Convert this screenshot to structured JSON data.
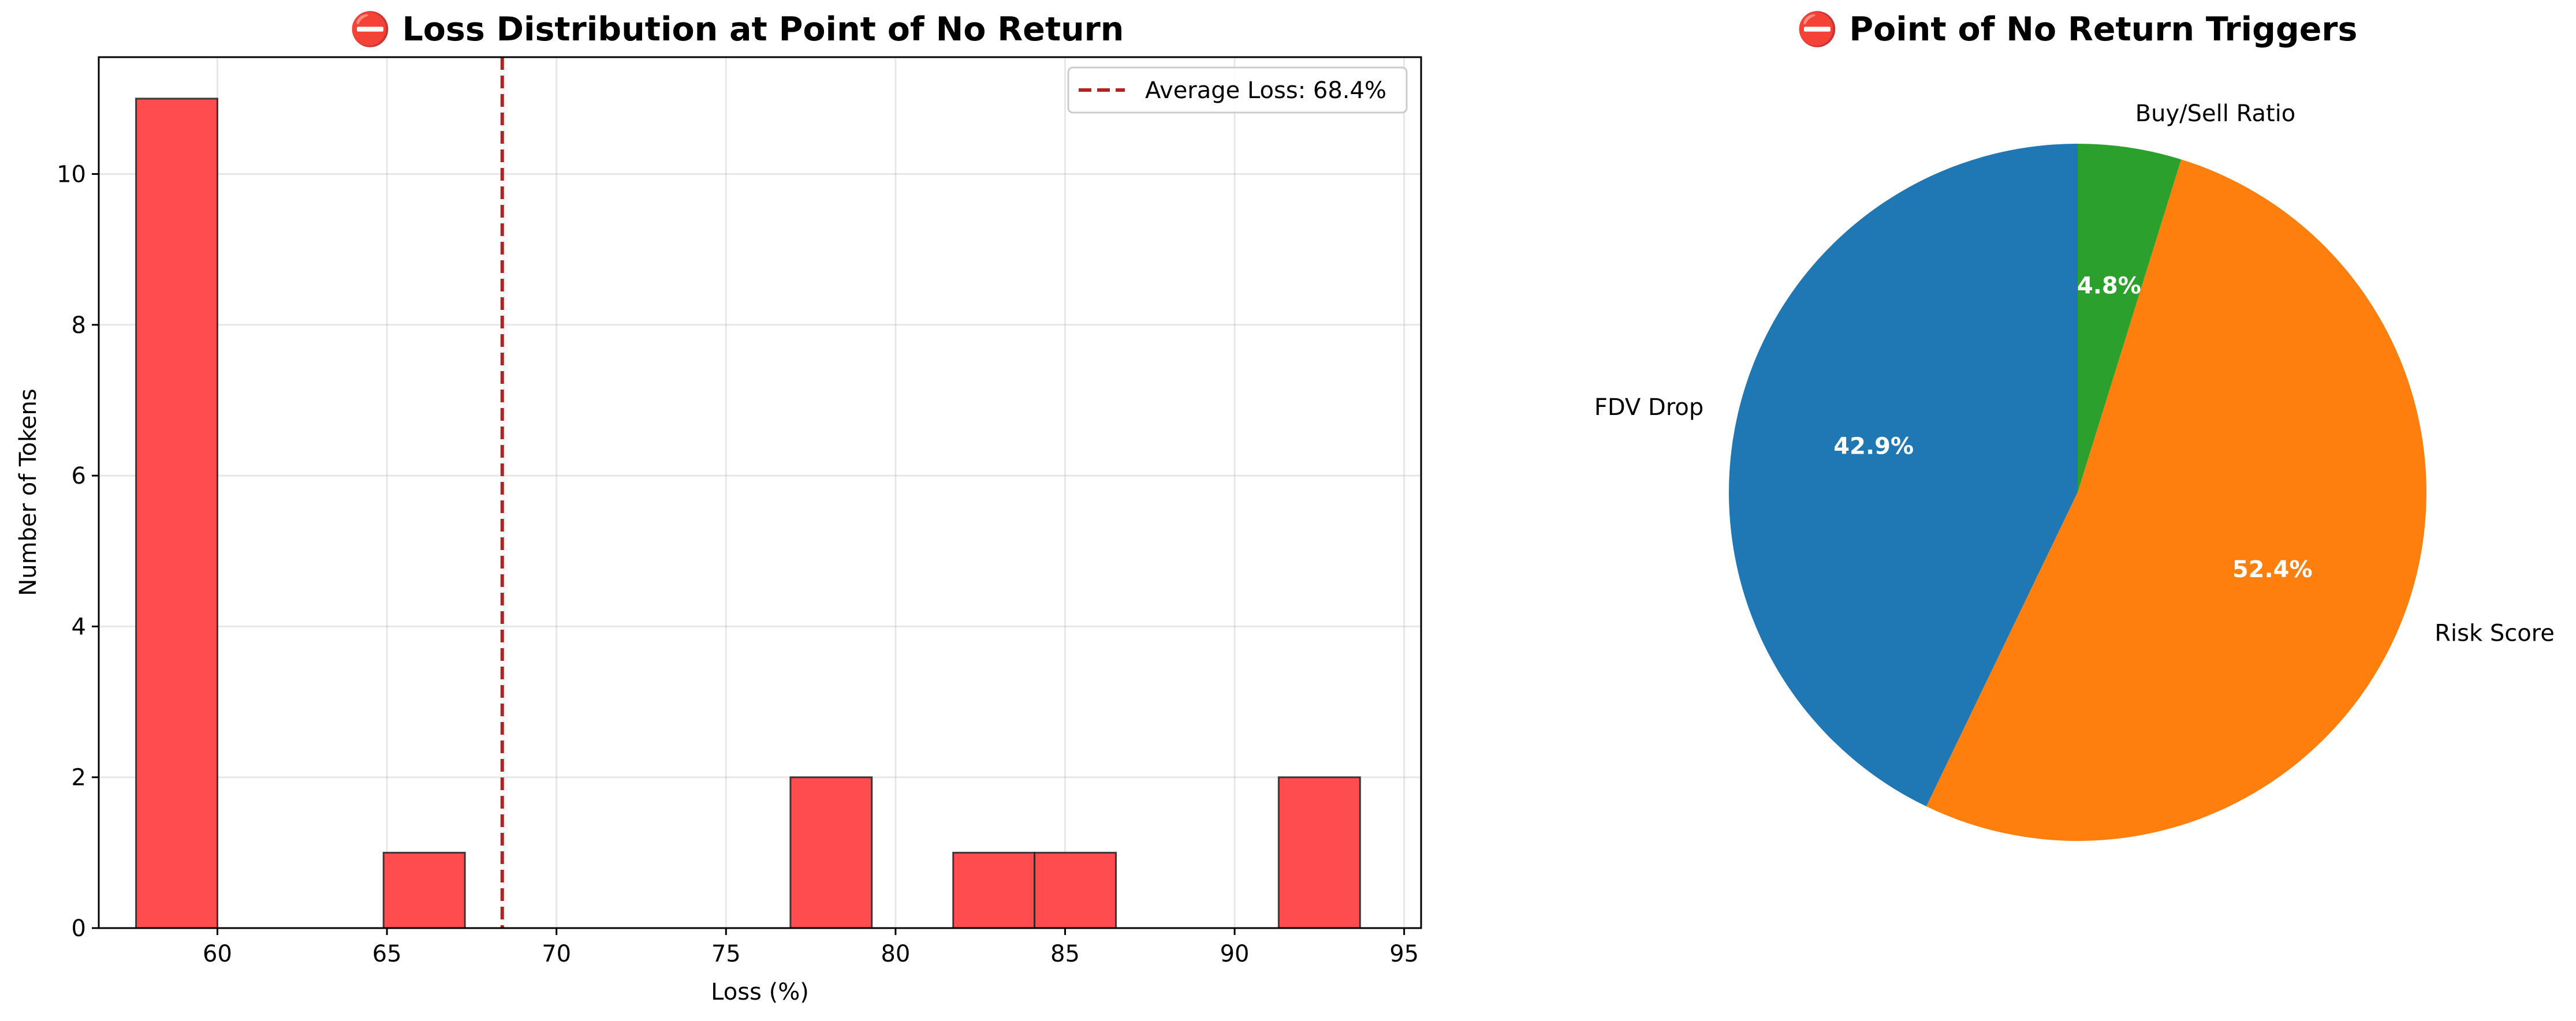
{
  "chart_data": [
    {
      "type": "bar",
      "title": "⛔ Loss Distribution at Point of No Return",
      "xlabel": "Loss (%)",
      "ylabel": "Number of Tokens",
      "xlim": [
        56.5,
        95.5
      ],
      "ylim": [
        0,
        11.55
      ],
      "xticks": [
        60,
        65,
        70,
        75,
        80,
        85,
        90,
        95
      ],
      "yticks": [
        0,
        2,
        4,
        6,
        8,
        10
      ],
      "grid": true,
      "bins": [
        {
          "x0": 57.6,
          "x1": 60.0,
          "count": 11
        },
        {
          "x0": 64.9,
          "x1": 67.3,
          "count": 1
        },
        {
          "x0": 76.9,
          "x1": 79.3,
          "count": 2
        },
        {
          "x0": 81.7,
          "x1": 84.1,
          "count": 1
        },
        {
          "x0": 84.1,
          "x1": 86.5,
          "count": 1
        },
        {
          "x0": 91.3,
          "x1": 93.7,
          "count": 2
        }
      ],
      "bar_color": "#ff4d4f",
      "average_line": {
        "x": 68.4,
        "color": "#b22222"
      },
      "legend": {
        "placement": "top-right",
        "entries": [
          "Average Loss: 68.4%"
        ]
      }
    },
    {
      "type": "pie",
      "title": "⛔ Point of No Return Triggers",
      "start_angle_deg": 90,
      "direction": "counterclockwise",
      "slices": [
        {
          "label": "FDV Drop",
          "value": 42.9,
          "pct_label": "42.9%",
          "color": "#1f77b4"
        },
        {
          "label": "Risk Score",
          "value": 52.4,
          "pct_label": "52.4%",
          "color": "#ff7f0e"
        },
        {
          "label": "Buy/Sell Ratio",
          "value": 4.8,
          "pct_label": "4.8%",
          "color": "#2ca02c"
        }
      ]
    }
  ]
}
